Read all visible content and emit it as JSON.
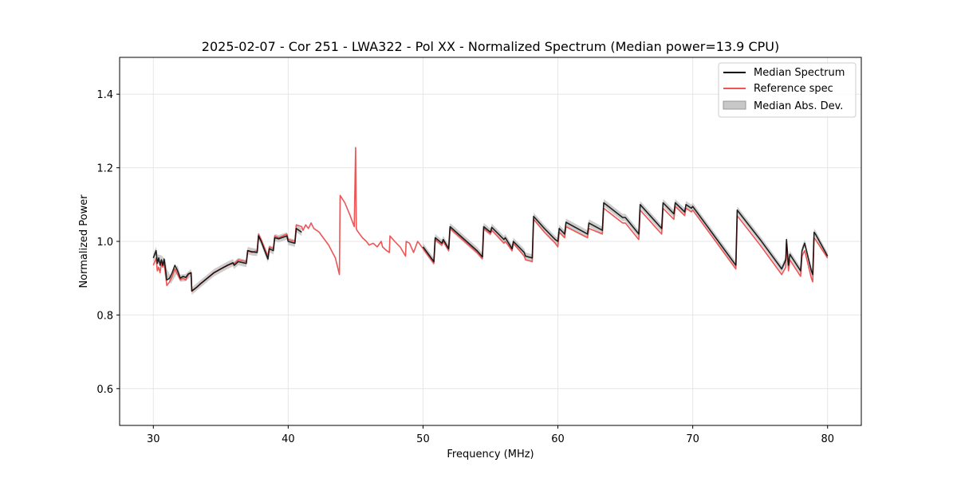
{
  "chart_data": {
    "type": "line",
    "title": "2025-02-07 - Cor 251 - LWA322 - Pol XX - Normalized Spectrum (Median power=13.9 CPU)",
    "xlabel": "Frequency (MHz)",
    "ylabel": "Normalized Power",
    "xlim": [
      27.5,
      82.5
    ],
    "ylim": [
      0.5,
      1.5
    ],
    "xticks": [
      30,
      40,
      50,
      60,
      70,
      80
    ],
    "xtick_labels": [
      "30",
      "40",
      "50",
      "60",
      "70",
      "80"
    ],
    "yticks": [
      0.6,
      0.8,
      1.0,
      1.2,
      1.4
    ],
    "ytick_labels": [
      "0.6",
      "0.8",
      "1.0",
      "1.2",
      "1.4"
    ],
    "grid": true,
    "legend_position": "top-right",
    "legend": [
      {
        "label": "Median Spectrum",
        "kind": "line",
        "color": "#000000"
      },
      {
        "label": "Reference spec",
        "kind": "line",
        "color": "#ee5555"
      },
      {
        "label": "Median Abs. Dev.",
        "kind": "band",
        "color": "#c8c8c8"
      }
    ],
    "series": [
      {
        "name": "Median Abs. Dev.",
        "kind": "band",
        "color": "#c8c8c8",
        "segments": [
          {
            "x": [
              30.0,
              30.2,
              30.3,
              30.6,
              30.9,
              31.0,
              31.3,
              31.8,
              32.0,
              32.4,
              32.8,
              32.85,
              33.5,
              34.0,
              34.5,
              35.0,
              35.5,
              35.9,
              36.0,
              36.3,
              36.9,
              37.0,
              37.3,
              37.7,
              37.8,
              38.0,
              38.5,
              38.6,
              38.9,
              39.0,
              39.3,
              39.9,
              40.0,
              40.5,
              40.6,
              41.0
            ],
            "upper": [
              0.965,
              0.985,
              0.965,
              0.962,
              0.95,
              0.925,
              0.905,
              0.935,
              0.91,
              0.912,
              0.925,
              0.875,
              0.895,
              0.91,
              0.925,
              0.935,
              0.945,
              0.952,
              0.945,
              0.955,
              0.95,
              0.985,
              0.982,
              0.98,
              1.025,
              1.01,
              0.962,
              0.99,
              0.985,
              1.02,
              1.017,
              1.025,
              1.01,
              1.005,
              1.045,
              1.035
            ],
            "lower": [
              0.945,
              0.965,
              0.945,
              0.94,
              0.93,
              0.905,
              0.885,
              0.915,
              0.89,
              0.892,
              0.905,
              0.855,
              0.875,
              0.89,
              0.905,
              0.915,
              0.925,
              0.932,
              0.925,
              0.935,
              0.93,
              0.965,
              0.962,
              0.96,
              1.005,
              0.99,
              0.942,
              0.97,
              0.965,
              1.0,
              0.997,
              1.005,
              0.99,
              0.985,
              1.025,
              1.015
            ]
          },
          {
            "x": [
              50.0,
              50.8,
              50.9,
              51.4,
              51.5,
              51.9,
              52.0,
              54.0,
              54.4,
              54.5,
              55.0,
              55.1,
              56.0,
              56.1,
              56.6,
              56.7,
              57.5,
              57.6,
              58.1,
              58.2,
              59.0,
              59.8,
              60.0,
              60.1,
              60.5,
              60.6,
              62.2,
              62.3,
              63.3,
              63.4,
              64.8,
              65.0,
              66.0,
              66.1,
              67.7,
              67.8,
              68.6,
              68.7,
              69.4,
              69.5,
              69.9,
              70.0,
              73.2,
              73.3,
              75.0,
              76.4,
              76.6,
              76.9,
              76.95,
              77.1,
              77.2,
              78.0,
              78.1,
              78.3,
              78.8,
              78.9,
              79.0,
              79.1,
              80.0
            ],
            "upper": [
              0.995,
              0.955,
              1.02,
              1.005,
              1.015,
              0.99,
              1.05,
              0.985,
              0.968,
              1.05,
              1.035,
              1.048,
              1.015,
              1.02,
              0.99,
              1.01,
              0.98,
              0.97,
              0.965,
              1.078,
              1.045,
              1.015,
              1.01,
              1.045,
              1.03,
              1.062,
              1.03,
              1.06,
              1.04,
              1.115,
              1.075,
              1.075,
              1.03,
              1.11,
              1.045,
              1.115,
              1.085,
              1.115,
              1.09,
              1.11,
              1.1,
              1.105,
              0.945,
              1.095,
              1.015,
              0.945,
              0.935,
              0.96,
              1.015,
              0.945,
              0.975,
              0.93,
              0.985,
              1.005,
              0.93,
              0.92,
              1.035,
              1.03,
              0.97
            ],
            "lower": [
              0.975,
              0.935,
              1.0,
              0.985,
              0.995,
              0.97,
              1.03,
              0.965,
              0.948,
              1.03,
              1.015,
              1.028,
              0.995,
              1.0,
              0.97,
              0.99,
              0.96,
              0.95,
              0.945,
              1.058,
              1.025,
              0.995,
              0.99,
              1.025,
              1.01,
              1.042,
              1.01,
              1.04,
              1.02,
              1.095,
              1.055,
              1.055,
              1.01,
              1.09,
              1.025,
              1.095,
              1.065,
              1.095,
              1.07,
              1.09,
              1.08,
              1.085,
              0.925,
              1.075,
              0.995,
              0.925,
              0.915,
              0.94,
              0.995,
              0.925,
              0.955,
              0.91,
              0.965,
              0.985,
              0.91,
              0.9,
              1.015,
              1.01,
              0.95
            ]
          }
        ]
      },
      {
        "name": "Reference spec",
        "kind": "line",
        "color": "#ee5555",
        "segments": [
          {
            "x": [
              30.0,
              30.2,
              30.3,
              30.4,
              30.5,
              30.6,
              30.7,
              30.8,
              30.9,
              31.0,
              31.2,
              31.4,
              31.6,
              31.8,
              32.0,
              32.2,
              32.4,
              32.6,
              32.8,
              32.85,
              33.2,
              33.5,
              34.0,
              34.5,
              35.0,
              35.5,
              35.9,
              36.0,
              36.3,
              36.9,
              37.0,
              37.3,
              37.7,
              37.8,
              38.0,
              38.5,
              38.6,
              38.9,
              39.0,
              39.3,
              39.9,
              40.0,
              40.5,
              40.6,
              41.0,
              41.1,
              41.3,
              41.5,
              41.7,
              41.9,
              42.1,
              42.3,
              42.5,
              43.0,
              43.5,
              43.8,
              43.85,
              44.2,
              44.6,
              44.9,
              45.0,
              45.05,
              45.1,
              45.3,
              45.5,
              45.8,
              46.0,
              46.3,
              46.6,
              46.9,
              47.0,
              47.3,
              47.5,
              47.55,
              47.9,
              48.3,
              48.7,
              48.75,
              49.0,
              49.3,
              49.6,
              50.0
            ],
            "y": [
              0.935,
              0.955,
              0.92,
              0.93,
              0.915,
              0.94,
              0.93,
              0.945,
              0.91,
              0.88,
              0.89,
              0.905,
              0.925,
              0.91,
              0.895,
              0.9,
              0.895,
              0.91,
              0.915,
              0.865,
              0.875,
              0.885,
              0.9,
              0.915,
              0.925,
              0.935,
              0.94,
              0.94,
              0.95,
              0.945,
              0.975,
              0.97,
              0.975,
              1.02,
              1.005,
              0.96,
              0.985,
              0.98,
              1.015,
              1.01,
              1.02,
              1.005,
              1.0,
              1.045,
              1.04,
              1.03,
              1.045,
              1.035,
              1.05,
              1.035,
              1.03,
              1.025,
              1.015,
              0.99,
              0.955,
              0.91,
              1.125,
              1.105,
              1.07,
              1.04,
              1.255,
              1.035,
              1.03,
              1.02,
              1.01,
              1.0,
              0.99,
              0.995,
              0.985,
              1.0,
              0.985,
              0.975,
              0.97,
              1.015,
              1.0,
              0.985,
              0.96,
              1.0,
              0.995,
              0.97,
              1.0,
              0.98
            ]
          },
          {
            "x": [
              50.0,
              50.8,
              50.9,
              51.4,
              51.5,
              51.9,
              52.0,
              54.0,
              54.4,
              54.5,
              55.0,
              55.1,
              56.0,
              56.1,
              56.6,
              56.7,
              57.5,
              57.6,
              58.1,
              58.2,
              59.0,
              59.8,
              60.0,
              60.1,
              60.5,
              60.6,
              62.2,
              62.3,
              63.3,
              63.4,
              64.8,
              65.0,
              66.0,
              66.1,
              67.7,
              67.8,
              68.6,
              68.7,
              69.4,
              69.5,
              69.9,
              70.0,
              73.2,
              73.3,
              75.0,
              76.4,
              76.6,
              76.9,
              76.95,
              77.1,
              77.2,
              78.0,
              78.1,
              78.3,
              78.8,
              78.9,
              79.0,
              79.1,
              80.0
            ],
            "y": [
              0.98,
              0.94,
              1.005,
              0.99,
              1.0,
              0.975,
              1.035,
              0.97,
              0.953,
              1.035,
              1.02,
              1.03,
              0.995,
              1.0,
              0.975,
              0.995,
              0.96,
              0.95,
              0.945,
              1.06,
              1.025,
              0.995,
              0.985,
              1.025,
              1.01,
              1.04,
              1.01,
              1.035,
              1.02,
              1.09,
              1.05,
              1.05,
              1.005,
              1.085,
              1.02,
              1.09,
              1.06,
              1.095,
              1.07,
              1.09,
              1.08,
              1.085,
              0.925,
              1.07,
              0.99,
              0.92,
              0.91,
              0.93,
              0.995,
              0.92,
              0.95,
              0.905,
              0.96,
              0.975,
              0.9,
              0.89,
              1.01,
              1.005,
              0.955
            ]
          }
        ]
      },
      {
        "name": "Median Spectrum",
        "kind": "line",
        "color": "#000000",
        "segments": [
          {
            "x": [
              30.0,
              30.2,
              30.3,
              30.4,
              30.5,
              30.6,
              30.7,
              30.8,
              30.9,
              31.0,
              31.2,
              31.4,
              31.6,
              31.8,
              32.0,
              32.2,
              32.4,
              32.6,
              32.8,
              32.85,
              33.2,
              33.5,
              34.0,
              34.5,
              35.0,
              35.5,
              35.9,
              36.0,
              36.3,
              36.9,
              37.0,
              37.3,
              37.7,
              37.8,
              38.0,
              38.5,
              38.6,
              38.9,
              39.0,
              39.3,
              39.9,
              40.0,
              40.5,
              40.6,
              41.0
            ],
            "y": [
              0.955,
              0.975,
              0.94,
              0.955,
              0.935,
              0.95,
              0.935,
              0.952,
              0.925,
              0.895,
              0.9,
              0.915,
              0.935,
              0.92,
              0.9,
              0.905,
              0.902,
              0.912,
              0.915,
              0.865,
              0.875,
              0.885,
              0.9,
              0.915,
              0.925,
              0.935,
              0.942,
              0.935,
              0.945,
              0.94,
              0.975,
              0.972,
              0.97,
              1.015,
              1.0,
              0.952,
              0.98,
              0.975,
              1.01,
              1.007,
              1.015,
              1.0,
              0.995,
              1.035,
              1.025
            ]
          },
          {
            "x": [
              50.0,
              50.8,
              50.9,
              51.4,
              51.5,
              51.9,
              52.0,
              54.0,
              54.4,
              54.5,
              55.0,
              55.1,
              56.0,
              56.1,
              56.6,
              56.7,
              57.5,
              57.6,
              58.1,
              58.2,
              59.0,
              59.8,
              60.0,
              60.1,
              60.5,
              60.6,
              62.2,
              62.3,
              63.3,
              63.4,
              64.8,
              65.0,
              66.0,
              66.1,
              67.7,
              67.8,
              68.6,
              68.7,
              69.4,
              69.5,
              69.9,
              70.0,
              73.2,
              73.3,
              75.0,
              76.4,
              76.6,
              76.9,
              76.95,
              77.1,
              77.2,
              78.0,
              78.1,
              78.3,
              78.8,
              78.9,
              79.0,
              79.1,
              80.0
            ],
            "y": [
              0.985,
              0.945,
              1.01,
              0.995,
              1.005,
              0.98,
              1.04,
              0.975,
              0.958,
              1.04,
              1.025,
              1.038,
              1.005,
              1.01,
              0.98,
              1.0,
              0.97,
              0.96,
              0.955,
              1.068,
              1.035,
              1.005,
              1.0,
              1.035,
              1.02,
              1.052,
              1.02,
              1.05,
              1.03,
              1.105,
              1.065,
              1.065,
              1.02,
              1.1,
              1.035,
              1.105,
              1.075,
              1.105,
              1.08,
              1.1,
              1.09,
              1.095,
              0.935,
              1.085,
              1.005,
              0.935,
              0.925,
              0.95,
              1.005,
              0.935,
              0.965,
              0.92,
              0.975,
              0.995,
              0.92,
              0.91,
              1.025,
              1.02,
              0.96
            ]
          }
        ]
      }
    ]
  }
}
